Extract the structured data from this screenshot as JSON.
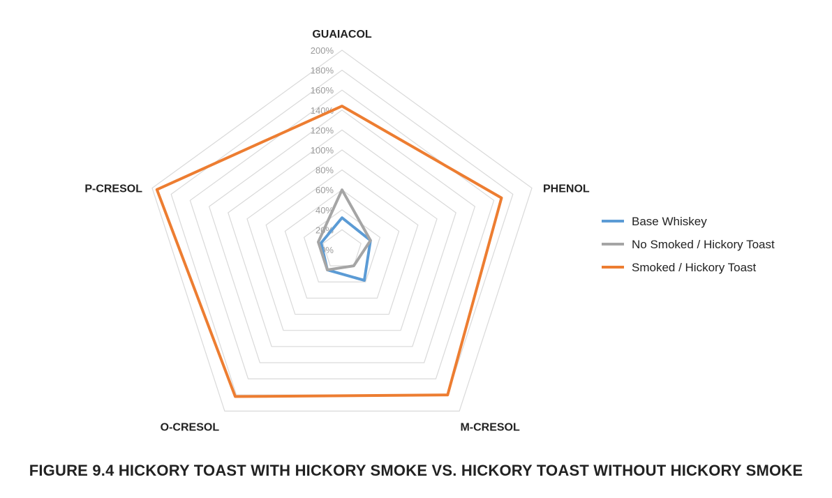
{
  "chart_data": {
    "type": "radar",
    "title": "FIGURE 9.4  HICKORY TOAST WITH HICKORY SMOKE VS. HICKORY TOAST WITHOUT HICKORY SMOKE",
    "categories": [
      "GUAIACOL",
      "PHENOL",
      "M-CRESOL",
      "O-CRESOL",
      "P-CRESOL"
    ],
    "ticks": [
      "0%",
      "20%",
      "40%",
      "60%",
      "80%",
      "100%",
      "120%",
      "140%",
      "160%",
      "180%",
      "200%"
    ],
    "rlim": [
      0,
      200
    ],
    "grid": true,
    "legend_position": "right",
    "series": [
      {
        "name": "Base Whiskey",
        "color": "#5b9bd5",
        "values": [
          32,
          30,
          38,
          25,
          22
        ]
      },
      {
        "name": "No Smoked / Hickory Toast",
        "color": "#a5a5a5",
        "values": [
          60,
          30,
          20,
          25,
          25
        ]
      },
      {
        "name": "Smoked / Hickory Toast",
        "color": "#ed7d31",
        "values": [
          144,
          168,
          180,
          182,
          195
        ]
      }
    ]
  }
}
